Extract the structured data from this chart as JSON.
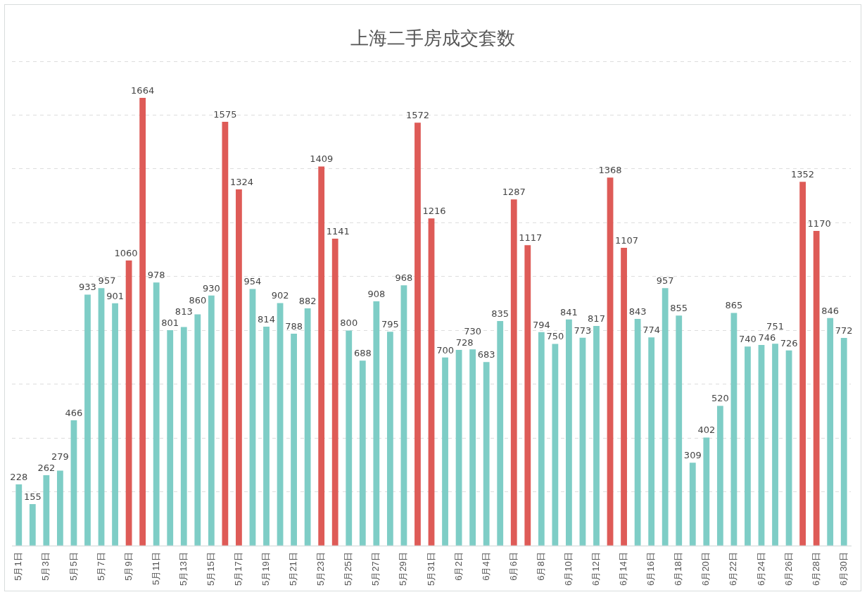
{
  "chart_data": {
    "type": "bar",
    "title": "上海二手房成交套数",
    "categories": [
      "5月1日",
      null,
      "5月3日",
      null,
      "5月5日",
      null,
      "5月7日",
      null,
      "5月9日",
      null,
      "5月11日",
      null,
      "5月13日",
      null,
      "5月15日",
      null,
      "5月17日",
      null,
      "5月19日",
      null,
      "5月21日",
      null,
      "5月23日",
      null,
      "5月25日",
      null,
      "5月27日",
      null,
      "5月29日",
      null,
      "5月31日",
      null,
      "6月2日",
      null,
      "6月4日",
      null,
      "6月6日",
      null,
      "6月8日",
      null,
      "6月10日",
      null,
      "6月12日",
      null,
      "6月14日",
      null,
      "6月16日",
      null,
      "6月18日",
      null,
      "6月20日",
      null,
      "6月22日",
      null,
      "6月24日",
      null,
      "6月26日",
      null,
      "6月28日",
      null,
      "6月30日"
    ],
    "values": [
      228,
      155,
      262,
      279,
      466,
      933,
      957,
      901,
      1060,
      1664,
      978,
      801,
      813,
      860,
      930,
      1575,
      1324,
      954,
      814,
      902,
      788,
      882,
      1409,
      1141,
      800,
      688,
      908,
      795,
      968,
      1572,
      1216,
      700,
      728,
      730,
      683,
      835,
      1287,
      1117,
      794,
      750,
      841,
      773,
      817,
      1368,
      1107,
      843,
      774,
      957,
      855,
      309,
      402,
      520,
      865,
      740,
      746,
      751,
      726,
      1352,
      1170,
      846,
      772
    ],
    "colors": [
      "#7ecdc6",
      "#7ecdc6",
      "#7ecdc6",
      "#7ecdc6",
      "#7ecdc6",
      "#7ecdc6",
      "#7ecdc6",
      "#7ecdc6",
      "#de5b57",
      "#de5b57",
      "#7ecdc6",
      "#7ecdc6",
      "#7ecdc6",
      "#7ecdc6",
      "#7ecdc6",
      "#de5b57",
      "#de5b57",
      "#7ecdc6",
      "#7ecdc6",
      "#7ecdc6",
      "#7ecdc6",
      "#7ecdc6",
      "#de5b57",
      "#de5b57",
      "#7ecdc6",
      "#7ecdc6",
      "#7ecdc6",
      "#7ecdc6",
      "#7ecdc6",
      "#de5b57",
      "#de5b57",
      "#7ecdc6",
      "#7ecdc6",
      "#7ecdc6",
      "#7ecdc6",
      "#7ecdc6",
      "#de5b57",
      "#de5b57",
      "#7ecdc6",
      "#7ecdc6",
      "#7ecdc6",
      "#7ecdc6",
      "#7ecdc6",
      "#de5b57",
      "#de5b57",
      "#7ecdc6",
      "#7ecdc6",
      "#7ecdc6",
      "#7ecdc6",
      "#7ecdc6",
      "#7ecdc6",
      "#7ecdc6",
      "#7ecdc6",
      "#7ecdc6",
      "#7ecdc6",
      "#7ecdc6",
      "#7ecdc6",
      "#de5b57",
      "#de5b57",
      "#7ecdc6",
      "#7ecdc6"
    ],
    "ylim": [
      0,
      1800
    ],
    "yticks": [
      {
        "value": 0,
        "label": null
      },
      {
        "value": 200,
        "label": null
      },
      {
        "value": 400,
        "label": null
      },
      {
        "value": 600,
        "label": null
      },
      {
        "value": 800,
        "label": null
      },
      {
        "value": 1000,
        "label": null
      },
      {
        "value": 1200,
        "label": null
      },
      {
        "value": 1400,
        "label": null
      },
      {
        "value": 1600,
        "label": null
      },
      {
        "value": 1800,
        "label": null
      }
    ],
    "grid": "y",
    "tick_labels": "x",
    "data_labels": true,
    "legend": false
  }
}
